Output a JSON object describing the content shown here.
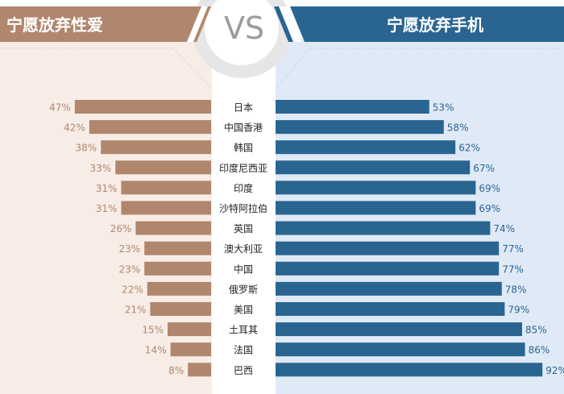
{
  "header": {
    "left_title": "宁愿放弃性爱",
    "right_title": "宁愿放弃手机",
    "vs_label": "VS"
  },
  "colors": {
    "left_bar": "#b0876d",
    "left_header": "#b0876d",
    "left_bg": "#f8ece6",
    "right_bar": "#2a6591",
    "right_header": "#2a6591",
    "right_bg": "#dfeaf6",
    "text": "#222222",
    "left_label": "#b0876d",
    "right_label": "#2a6591",
    "circle": "#e6e6e6",
    "vs_text": "#9b9b9b"
  },
  "chart_data": {
    "type": "bar",
    "categories": [
      "日本",
      "中国香港",
      "韩国",
      "印度尼西亚",
      "印度",
      "沙特阿拉伯",
      "英国",
      "澳大利亚",
      "中国",
      "俄罗斯",
      "美国",
      "土耳其",
      "法国",
      "巴西"
    ],
    "series": [
      {
        "name": "宁愿放弃性爱",
        "values": [
          47,
          42,
          38,
          33,
          31,
          31,
          26,
          23,
          23,
          22,
          21,
          15,
          14,
          8
        ],
        "labels": [
          "47%",
          "42%",
          "38%",
          "33%",
          "31%",
          "31%",
          "26%",
          "23%",
          "23%",
          "22%",
          "21%",
          "15%",
          "14%",
          "8%"
        ]
      },
      {
        "name": "宁愿放弃手机",
        "values": [
          53,
          58,
          62,
          67,
          69,
          69,
          74,
          77,
          77,
          78,
          79,
          85,
          86,
          92
        ],
        "labels": [
          "53%",
          "58%",
          "62%",
          "67%",
          "69%",
          "69%",
          "74%",
          "77%",
          "77%",
          "78%",
          "79%",
          "85%",
          "86%",
          "92%"
        ]
      }
    ],
    "unit": "%",
    "legend": "none",
    "grid": false
  }
}
